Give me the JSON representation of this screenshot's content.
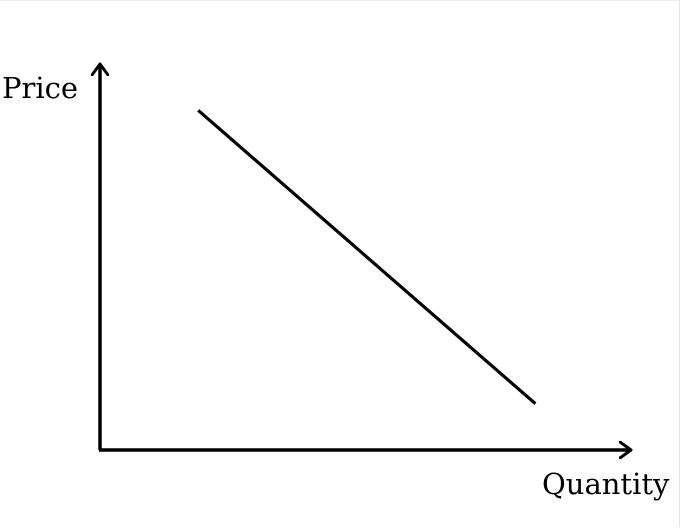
{
  "chart_data": {
    "type": "line",
    "title": "",
    "xlabel": "Quantity",
    "ylabel": "Price",
    "grid": false,
    "ticks": false,
    "xlim": [
      0,
      10
    ],
    "ylim": [
      0,
      10
    ],
    "series": [
      {
        "x": [
          1.85,
          8.2
        ],
        "y": [
          8.8,
          1.2
        ]
      }
    ]
  },
  "colors": {
    "axis": "#000000",
    "line": "#000000",
    "background": "#ffffff"
  }
}
